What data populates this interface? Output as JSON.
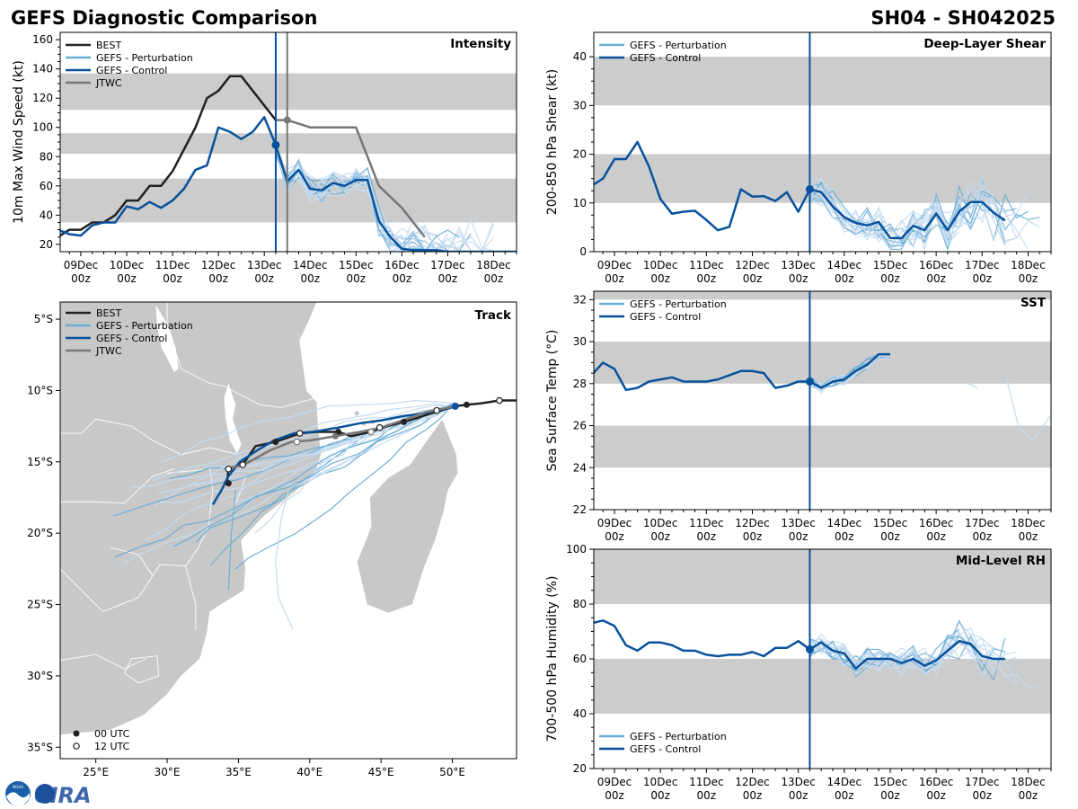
{
  "header": {
    "title": "GEFS Diagnostic Comparison",
    "storm_id": "SH04 - SH042025"
  },
  "logos": {
    "noaa": "NOAA",
    "cira": "CIRA"
  },
  "colors": {
    "best": "#222222",
    "perturbation": "#6aaed6",
    "perturbation_light": "#c6dbef",
    "control": "#08519c",
    "jtwc": "#777777",
    "band": "#cccccc",
    "land": "#c8c8c8",
    "border": "#ffffff"
  },
  "time_axis": {
    "labels": [
      [
        "09Dec",
        "00z"
      ],
      [
        "10Dec",
        "00z"
      ],
      [
        "11Dec",
        "00z"
      ],
      [
        "12Dec",
        "00z"
      ],
      [
        "13Dec",
        "00z"
      ],
      [
        "14Dec",
        "00z"
      ],
      [
        "15Dec",
        "00z"
      ],
      [
        "16Dec",
        "00z"
      ],
      [
        "17Dec",
        "00z"
      ],
      [
        "18Dec",
        "00z"
      ]
    ],
    "tick_days": [
      0,
      1,
      2,
      3,
      4,
      5,
      6,
      7,
      8,
      9
    ],
    "xlim": [
      -0.45,
      9.5
    ],
    "init_day": 4.25,
    "jtwc_day": 4.5
  },
  "chart_data": [
    {
      "id": "intensity",
      "type": "line",
      "title": "Intensity",
      "ylabel": "10m Max Wind Speed (kt)",
      "ylim": [
        15,
        165
      ],
      "yticks": [
        20,
        40,
        60,
        80,
        100,
        120,
        140,
        160
      ],
      "bands": [
        [
          35,
          65
        ],
        [
          82,
          96
        ],
        [
          112,
          137
        ]
      ],
      "legend": [
        "BEST",
        "GEFS - Perturbation",
        "GEFS - Control",
        "JTWC"
      ],
      "series": [
        {
          "name": "BEST",
          "x": [
            -0.5,
            -0.25,
            0,
            0.25,
            0.5,
            0.75,
            1,
            1.25,
            1.5,
            1.75,
            2,
            2.25,
            2.5,
            2.75,
            3,
            3.25,
            3.5,
            3.75,
            4,
            4.25
          ],
          "y": [
            25,
            30,
            30,
            35,
            35,
            40,
            50,
            50,
            60,
            60,
            70,
            85,
            100,
            120,
            125,
            135,
            135,
            125,
            115,
            105
          ]
        },
        {
          "name": "GEFS - Control",
          "x": [
            -0.5,
            -0.25,
            0,
            0.25,
            0.5,
            0.75,
            1,
            1.25,
            1.5,
            1.75,
            2,
            2.25,
            2.5,
            2.75,
            3,
            3.25,
            3.5,
            3.75,
            4,
            4.25,
            4.5,
            4.75,
            5,
            5.25,
            5.5,
            5.75,
            6,
            6.25,
            6.5,
            6.75,
            7,
            7.25,
            7.5,
            7.75,
            8,
            8.25,
            8.5,
            8.75,
            9,
            9.25,
            9.5
          ],
          "y": [
            30,
            27,
            26,
            33,
            35,
            35,
            46,
            44,
            49,
            45,
            50,
            58,
            71,
            74,
            100,
            97,
            92,
            97,
            107,
            88,
            63,
            71,
            58,
            57,
            62,
            60,
            64,
            64,
            36,
            25,
            17,
            16,
            16,
            16,
            15,
            15,
            15,
            15,
            15,
            15,
            15
          ]
        },
        {
          "name": "JTWC",
          "x": [
            4.25,
            4.5,
            5,
            5.5,
            6,
            6.5,
            7,
            7.5
          ],
          "y": [
            105,
            105,
            100,
            100,
            100,
            60,
            45,
            25
          ]
        }
      ],
      "perturbation_count": 18
    },
    {
      "id": "shear",
      "type": "line",
      "title": "Deep-Layer Shear",
      "ylabel": "200-850 hPa Shear (kt)",
      "ylim": [
        0,
        45
      ],
      "yticks": [
        0,
        10,
        20,
        30,
        40
      ],
      "bands": [
        [
          10,
          20
        ],
        [
          30,
          40
        ]
      ],
      "legend": [
        "GEFS - Perturbation",
        "GEFS - Control"
      ],
      "series": [
        {
          "name": "GEFS - Control",
          "x": [
            -0.5,
            -0.25,
            0,
            0.25,
            0.5,
            0.75,
            1,
            1.25,
            1.5,
            1.75,
            2,
            2.25,
            2.5,
            2.75,
            3,
            3.25,
            3.5,
            3.75,
            4,
            4.25,
            4.5,
            4.75,
            5,
            5.25,
            5.5,
            5.75,
            6,
            6.25,
            6.5,
            6.75,
            7,
            7.25,
            7.5,
            7.75,
            8,
            8.25,
            8.5
          ],
          "y": [
            13.5,
            15,
            19,
            19,
            22.5,
            17.5,
            10.8,
            7.8,
            8.2,
            8.4,
            6.5,
            4.4,
            5.1,
            12.8,
            11.3,
            11.4,
            10.4,
            12.2,
            8.2,
            12.8,
            12.2,
            9.3,
            7.1,
            5.9,
            5.4,
            6.1,
            2.8,
            2.8,
            5.3,
            4.4,
            7.8,
            4.4,
            8.2,
            10.2,
            10.2,
            8.0,
            6.4
          ]
        }
      ],
      "perturbation_count": 18
    },
    {
      "id": "sst",
      "type": "line",
      "title": "SST",
      "ylabel": "Sea Surface Temp (°C)",
      "ylim": [
        22,
        32.4
      ],
      "yticks": [
        22,
        24,
        26,
        28,
        30,
        32
      ],
      "bands": [
        [
          24,
          26
        ],
        [
          28,
          30
        ],
        [
          32,
          34
        ]
      ],
      "legend": [
        "GEFS - Perturbation",
        "GEFS - Control"
      ],
      "series": [
        {
          "name": "GEFS - Control",
          "x": [
            -0.5,
            -0.25,
            0,
            0.25,
            0.5,
            0.75,
            1,
            1.25,
            1.5,
            1.75,
            2,
            2.25,
            2.5,
            2.75,
            3,
            3.25,
            3.5,
            3.75,
            4,
            4.25,
            4.5,
            4.75,
            5,
            5.25,
            5.5,
            5.75,
            6
          ],
          "y": [
            28.4,
            29.0,
            28.7,
            27.7,
            27.8,
            28.1,
            28.2,
            28.3,
            28.1,
            28.1,
            28.1,
            28.2,
            28.4,
            28.6,
            28.6,
            28.5,
            27.8,
            27.9,
            28.1,
            28.1,
            27.8,
            28.1,
            28.2,
            28.6,
            28.9,
            29.4,
            29.4
          ]
        }
      ],
      "perturbation_count": 14
    },
    {
      "id": "rh",
      "type": "line",
      "title": "Mid-Level RH",
      "ylabel": "700-500 hPa Humidity (%)",
      "ylim": [
        20,
        100
      ],
      "yticks": [
        20,
        40,
        60,
        80,
        100
      ],
      "bands": [
        [
          40,
          60
        ],
        [
          80,
          100
        ]
      ],
      "legend": [
        "GEFS - Perturbation",
        "GEFS - Control"
      ],
      "series": [
        {
          "name": "GEFS - Control",
          "x": [
            -0.5,
            -0.25,
            0,
            0.25,
            0.5,
            0.75,
            1,
            1.25,
            1.5,
            1.75,
            2,
            2.25,
            2.5,
            2.75,
            3,
            3.25,
            3.5,
            3.75,
            4,
            4.25,
            4.5,
            4.75,
            5,
            5.25,
            5.5,
            5.75,
            6,
            6.25,
            6.5,
            6.75,
            7,
            7.25,
            7.5,
            7.75,
            8,
            8.25,
            8.5
          ],
          "y": [
            73,
            74,
            72,
            65,
            63,
            66,
            66,
            65,
            63,
            63,
            61.5,
            61,
            61.5,
            61.5,
            62.5,
            61,
            64,
            64,
            66.5,
            63.5,
            66,
            63,
            62,
            56.5,
            60,
            60,
            60,
            58.5,
            60,
            57.5,
            59.5,
            63,
            66.5,
            65.5,
            61,
            60,
            60
          ]
        }
      ],
      "perturbation_count": 18
    },
    {
      "id": "track",
      "type": "scatter",
      "title": "Track",
      "xlim": [
        22.5,
        54.5
      ],
      "ylim": [
        -35.8,
        -3.8
      ],
      "xticks": [
        25,
        30,
        35,
        40,
        45,
        50
      ],
      "xtick_labels": [
        "25°E",
        "30°E",
        "35°E",
        "40°E",
        "45°E",
        "50°E"
      ],
      "yticks": [
        -5,
        -10,
        -15,
        -20,
        -25,
        -30,
        -35
      ],
      "ytick_labels": [
        "5°S",
        "10°S",
        "15°S",
        "20°S",
        "25°S",
        "30°S",
        "35°S"
      ],
      "legend": [
        "BEST",
        "GEFS - Perturbation",
        "GEFS - Control",
        "JTWC"
      ],
      "marker_legend": [
        "00 UTC",
        "12 UTC"
      ],
      "series": [
        {
          "name": "BEST",
          "lon": [
            54.5,
            53.3,
            52,
            51,
            50.2,
            49.2,
            48.2,
            47.3,
            46.6,
            45.1,
            44.3,
            42.9,
            42,
            40.5,
            39.3,
            37.6,
            36.2,
            35.3,
            34.3,
            34.2
          ],
          "lat": [
            -10.7,
            -10.7,
            -10.9,
            -11.0,
            -11.1,
            -11.4,
            -11.7,
            -12.0,
            -12.2,
            -12.6,
            -12.9,
            -13.2,
            -12.9,
            -12.9,
            -13.0,
            -13.6,
            -13.9,
            -15.2,
            -15.5,
            -16.5
          ]
        },
        {
          "name": "GEFS - Control",
          "lon": [
            50.2,
            49,
            48,
            46.5,
            45,
            43.5,
            42,
            40.2,
            38.9,
            37.5,
            36.3,
            35.1,
            34.3,
            33.8,
            33.2
          ],
          "lat": [
            -11.1,
            -11.4,
            -11.6,
            -11.8,
            -12.1,
            -12.3,
            -12.6,
            -12.9,
            -13.0,
            -13.5,
            -14.2,
            -15.0,
            -16.0,
            -17.0,
            -18.0
          ]
        },
        {
          "name": "JTWC",
          "lon": [
            50.2,
            48.2,
            46.8,
            45,
            43.5,
            41.8,
            40,
            38.7,
            37.2,
            35.4,
            34.3
          ],
          "lat": [
            -11.1,
            -11.5,
            -12.0,
            -12.6,
            -12.9,
            -13.2,
            -13.5,
            -13.6,
            -14.2,
            -15.2,
            -15.5
          ]
        }
      ],
      "best_00utc": [
        [
          51,
          -11.0
        ],
        [
          46.6,
          -12.2
        ],
        [
          42,
          -12.9
        ],
        [
          37.6,
          -13.6
        ],
        [
          34.3,
          -16.5
        ]
      ],
      "best_12utc": [
        [
          53.3,
          -10.7
        ],
        [
          48.9,
          -11.4
        ],
        [
          44.9,
          -12.6
        ],
        [
          39.3,
          -13.0
        ],
        [
          35.3,
          -15.2
        ],
        [
          34.3,
          -15.5
        ]
      ],
      "jtwc_00utc": [
        [
          41.8,
          -13.2
        ]
      ],
      "jtwc_12utc": [
        [
          44.3,
          -12.9
        ],
        [
          39.1,
          -13.6
        ]
      ]
    }
  ]
}
